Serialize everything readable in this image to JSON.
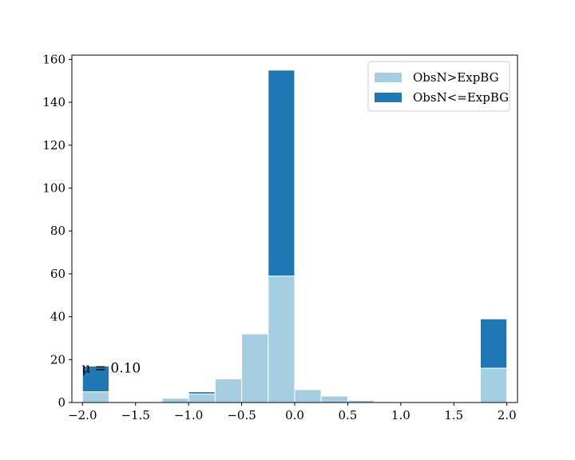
{
  "chart_data": {
    "type": "bar",
    "stacked": true,
    "bin_width": 0.25,
    "bin_centers": [
      -1.875,
      -1.625,
      -1.375,
      -1.125,
      -0.875,
      -0.625,
      -0.375,
      -0.125,
      0.125,
      0.375,
      0.625,
      0.875,
      1.125,
      1.375,
      1.625,
      1.875
    ],
    "series": [
      {
        "name": "ObsN>ExpBG",
        "color": "#a6cee3",
        "values": [
          5,
          0,
          0,
          2,
          4,
          11,
          32,
          59,
          6,
          3,
          1,
          0,
          0,
          0,
          0,
          16
        ]
      },
      {
        "name": "ObsN<=ExpBG",
        "color": "#1f78b4",
        "values": [
          12,
          0,
          0,
          0,
          1,
          0,
          0,
          96,
          0,
          0,
          0,
          0,
          0,
          0,
          0,
          23
        ]
      }
    ],
    "xlim": [
      -2.1,
      2.1
    ],
    "ylim": [
      0,
      162
    ],
    "xticks": [
      -2.0,
      -1.5,
      -1.0,
      -0.5,
      0.0,
      0.5,
      1.0,
      1.5,
      2.0
    ],
    "xtick_labels": [
      "−2.0",
      "−1.5",
      "−1.0",
      "−0.5",
      "0.0",
      "0.5",
      "1.0",
      "1.5",
      "2.0"
    ],
    "yticks": [
      0,
      20,
      40,
      60,
      80,
      100,
      120,
      140,
      160
    ],
    "ytick_labels": [
      "0",
      "20",
      "40",
      "60",
      "80",
      "100",
      "120",
      "140",
      "160"
    ],
    "legend_position": "top-right",
    "annotation": "μ = 0.10",
    "grid": false,
    "title": "",
    "xlabel": "",
    "ylabel": ""
  }
}
